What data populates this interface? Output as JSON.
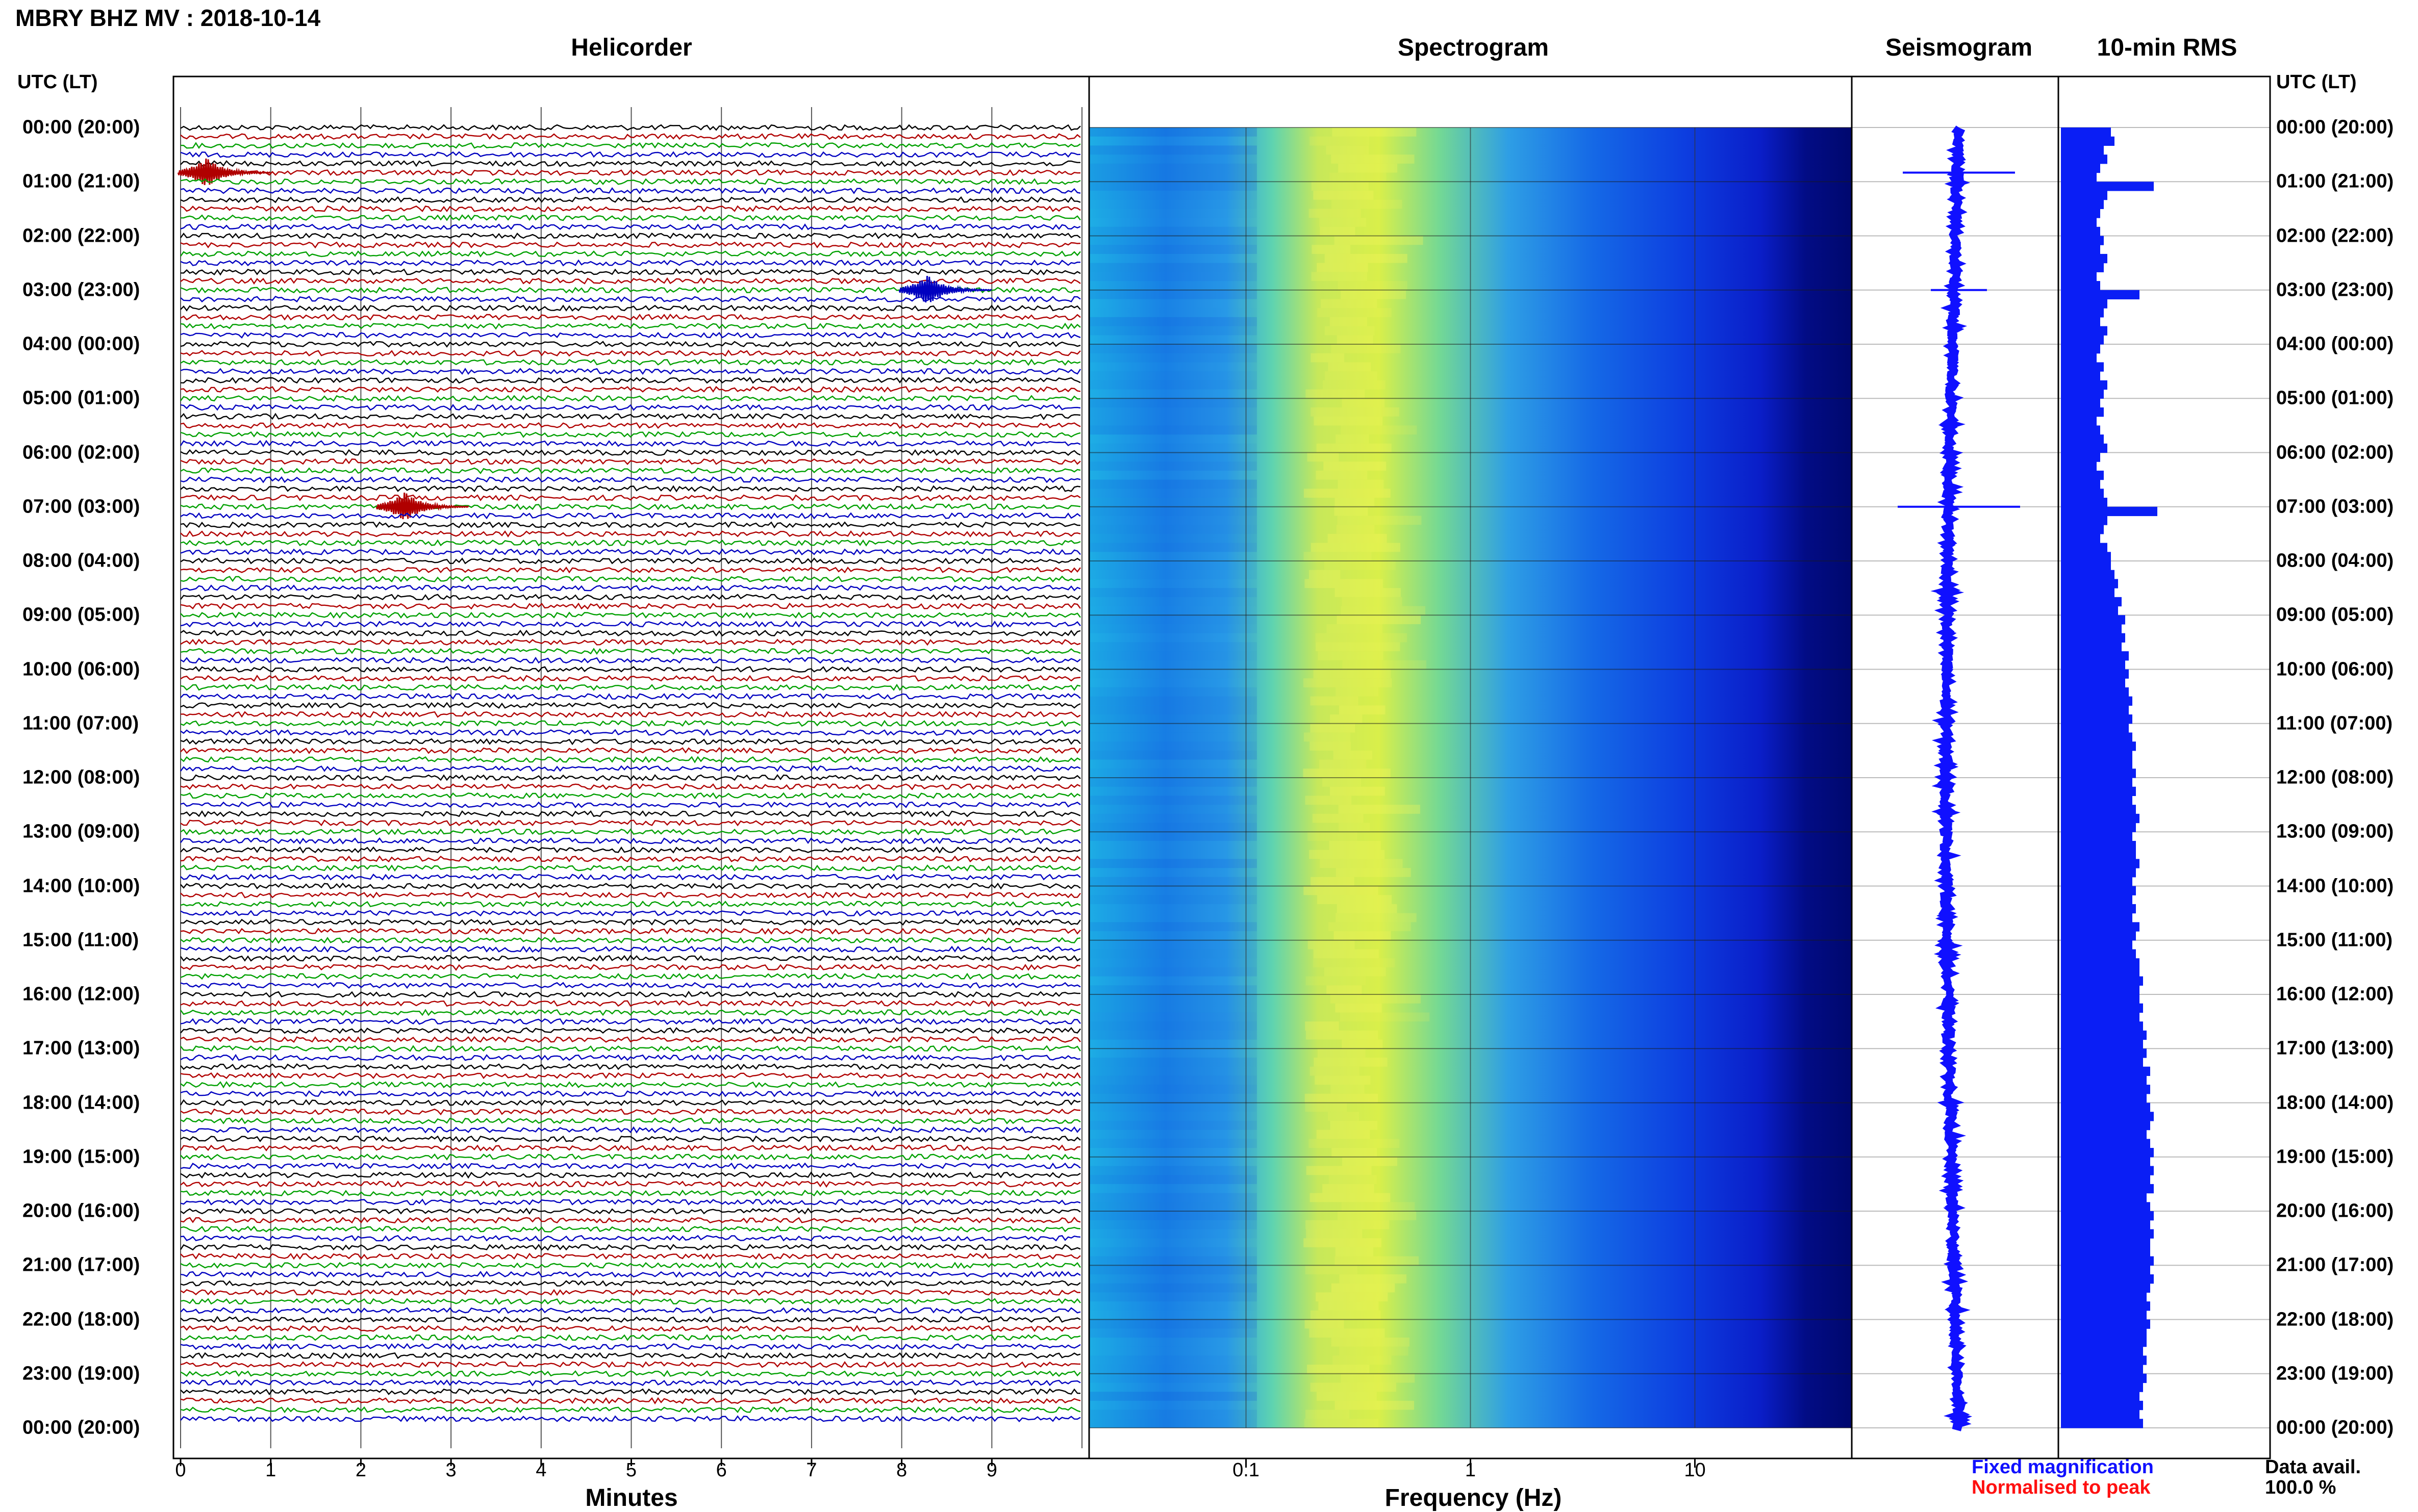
{
  "page": {
    "title": "MBRY BHZ MV : 2018-10-14",
    "panels": {
      "helicorder": "Helicorder",
      "spectrogram": "Spectrogram",
      "seismogram": "Seismogram",
      "rms": "10-min RMS"
    },
    "utc_label": "UTC (LT)",
    "minutes_label": "Minutes",
    "frequency_label": "Frequency (Hz)",
    "legend": {
      "fixed": "Fixed magnification",
      "normalised": "Normalised to peak"
    },
    "data_avail_label": "Data avail.",
    "data_avail_value": "100.0 %",
    "colors": {
      "fixed": "#1010ff",
      "normalised": "#ff1010",
      "trace_cycle": [
        "#000000",
        "#b00000",
        "#00a000",
        "#0000c0"
      ],
      "rms_bar": "#0a1ef5"
    }
  },
  "chart_data": {
    "type": "heatmap",
    "time_labels": [
      "00:00 (20:00)",
      "01:00 (21:00)",
      "02:00 (22:00)",
      "03:00 (23:00)",
      "04:00 (00:00)",
      "05:00 (01:00)",
      "06:00 (02:00)",
      "07:00 (03:00)",
      "08:00 (04:00)",
      "09:00 (05:00)",
      "10:00 (06:00)",
      "11:00 (07:00)",
      "12:00 (08:00)",
      "13:00 (09:00)",
      "14:00 (10:00)",
      "15:00 (11:00)",
      "16:00 (12:00)",
      "17:00 (13:00)",
      "18:00 (14:00)",
      "19:00 (15:00)",
      "20:00 (16:00)",
      "21:00 (17:00)",
      "22:00 (18:00)",
      "23:00 (19:00)",
      "00:00 (20:00)"
    ],
    "minute_ticks": [
      "0",
      "1",
      "2",
      "3",
      "4",
      "5",
      "6",
      "7",
      "8",
      "9"
    ],
    "freq_ticks": [
      "0.1",
      "1",
      "10"
    ],
    "freq_range": [
      0.02,
      50
    ],
    "minutes_range": [
      0,
      10
    ],
    "traces_per_hour": 6,
    "events": [
      {
        "hour": 0,
        "line": 5,
        "minute": 0.2,
        "label_color": "#b00000"
      },
      {
        "hour": 3,
        "line": 0,
        "minute": 8.2,
        "label_color": "#0000c0"
      },
      {
        "hour": 7,
        "line": 0,
        "minute": 2.4,
        "label_color": "#b00000"
      }
    ],
    "rms_series": [
      1.4,
      1.5,
      1.2,
      1.3,
      1.1,
      1.0,
      2.6,
      1.3,
      1.2,
      1.1,
      1.0,
      1.1,
      1.2,
      1.1,
      1.3,
      1.2,
      1.0,
      1.1,
      2.2,
      1.3,
      1.2,
      1.1,
      1.3,
      1.2,
      1.1,
      1.0,
      1.2,
      1.1,
      1.3,
      1.2,
      1.1,
      1.2,
      1.0,
      1.1,
      1.2,
      1.3,
      1.1,
      1.0,
      1.2,
      1.1,
      1.2,
      1.3,
      2.7,
      1.3,
      1.2,
      1.1,
      1.3,
      1.4,
      1.4,
      1.5,
      1.6,
      1.5,
      1.7,
      1.6,
      1.8,
      1.7,
      1.8,
      1.7,
      1.9,
      1.8,
      1.9,
      1.8,
      1.9,
      2.0,
      1.9,
      2.0,
      1.9,
      2.0,
      2.1,
      2.0,
      2.0,
      2.1,
      2.0,
      2.1,
      2.0,
      2.1,
      2.2,
      2.1,
      2.0,
      2.1,
      2.1,
      2.2,
      2.1,
      2.0,
      2.1,
      2.0,
      2.1,
      2.0,
      2.2,
      2.1,
      2.0,
      2.1,
      2.2,
      2.2,
      2.3,
      2.2,
      2.2,
      2.3,
      2.2,
      2.3,
      2.4,
      2.3,
      2.4,
      2.3,
      2.5,
      2.4,
      2.5,
      2.4,
      2.5,
      2.6,
      2.5,
      2.4,
      2.5,
      2.6,
      2.5,
      2.6,
      2.5,
      2.6,
      2.4,
      2.5,
      2.6,
      2.5,
      2.6,
      2.5,
      2.5,
      2.6,
      2.5,
      2.6,
      2.5,
      2.4,
      2.5,
      2.4,
      2.5,
      2.4,
      2.4,
      2.3,
      2.4,
      2.3,
      2.4,
      2.3,
      2.2,
      2.3,
      2.2,
      2.3
    ]
  }
}
